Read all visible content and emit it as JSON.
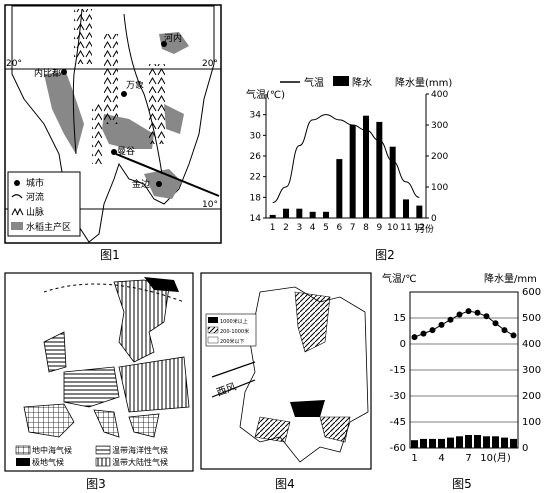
{
  "fig1": {
    "caption": "图1",
    "cities": [
      "内比都",
      "万象",
      "河内",
      "曼谷",
      "金边"
    ],
    "lat_labels": [
      "20°",
      "20°",
      "10°"
    ],
    "legend": [
      "城市",
      "河流",
      "山脉",
      "水稻主产区"
    ]
  },
  "fig2": {
    "caption": "图2",
    "legend_temp": "气温",
    "legend_precip": "降水",
    "y_left_label": "气温(℃)",
    "y_right_label": "降水量(mm)",
    "x_unit": "月份",
    "chart_data": {
      "type": "bar",
      "categories": [
        "1",
        "2",
        "3",
        "4",
        "5",
        "6",
        "7",
        "8",
        "9",
        "10",
        "11",
        "12"
      ],
      "series": [
        {
          "name": "降水",
          "values": [
            10,
            30,
            30,
            20,
            20,
            190,
            300,
            330,
            310,
            230,
            60,
            40
          ]
        },
        {
          "name": "气温",
          "values": [
            17,
            20,
            28,
            33,
            34,
            33,
            32,
            31,
            29,
            25,
            21,
            18
          ]
        }
      ],
      "y_left_ticks": [
        14,
        18,
        22,
        26,
        30,
        34
      ],
      "y_right_ticks": [
        0,
        100,
        200,
        300,
        400
      ],
      "ylim_left": [
        14,
        38
      ],
      "ylim_right": [
        0,
        400
      ]
    }
  },
  "fig3": {
    "caption": "图3",
    "legend": [
      "地中海气候",
      "温带海洋性气候",
      "极地气候",
      "温带大陆性气候"
    ]
  },
  "fig4": {
    "caption": "图4",
    "legend": [
      "1000米以上",
      "200-1000米",
      "200米以下"
    ],
    "wind_label": "西风"
  },
  "fig5": {
    "caption": "图5",
    "y_left_label": "气温/℃",
    "y_right_label": "降水量/mm",
    "chart_data": {
      "type": "bar",
      "categories": [
        "1",
        "2",
        "3",
        "4",
        "5",
        "6",
        "7",
        "8",
        "9",
        "10",
        "11",
        "12"
      ],
      "x_tick_labels": [
        "1",
        "4",
        "7",
        "10(月)"
      ],
      "series": [
        {
          "name": "降水",
          "values": [
            30,
            35,
            35,
            35,
            40,
            45,
            50,
            50,
            45,
            45,
            40,
            35
          ]
        },
        {
          "name": "气温",
          "values": [
            4,
            6,
            8,
            11,
            14,
            17,
            19,
            18,
            16,
            12,
            8,
            5
          ]
        }
      ],
      "y_left_ticks": [
        15,
        0,
        -15,
        -30,
        -45,
        -60
      ],
      "y_right_ticks": [
        600,
        500,
        400,
        300,
        200,
        100,
        0
      ],
      "ylim_left": [
        -60,
        30
      ],
      "ylim_right": [
        0,
        600
      ]
    }
  }
}
